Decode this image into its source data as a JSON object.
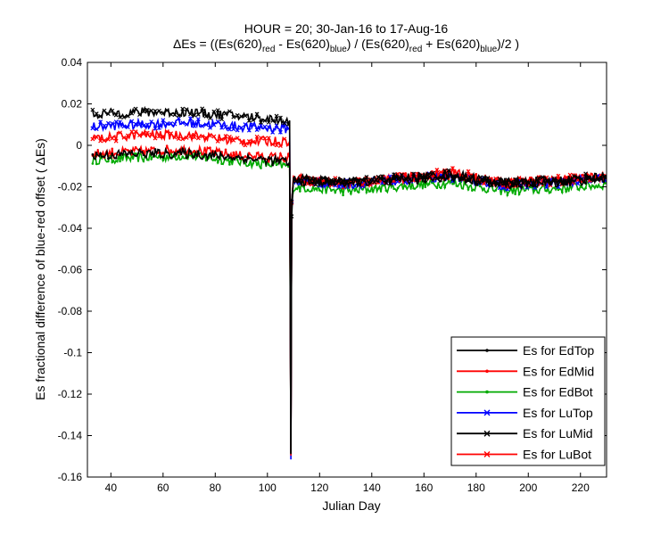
{
  "chart_data": {
    "type": "line",
    "title": "HOUR = 20; 30-Jan-16 to 17-Aug-16",
    "subtitle_parts": {
      "prefix": "ΔEs = ((Es(620)",
      "sub1": "red",
      "mid1": " - Es(620)",
      "sub2": "blue",
      "mid2": ") / (Es(620)",
      "sub3": "red",
      "mid3": " + Es(620)",
      "sub4": "blue",
      "suffix": ")/2  )"
    },
    "xlabel": "Julian Day",
    "ylabel": "Es fractional difference of blue-red offset ( ΔEs)",
    "xlim": [
      31,
      230
    ],
    "ylim": [
      -0.16,
      0.04
    ],
    "x_ticks": [
      40,
      60,
      80,
      100,
      120,
      140,
      160,
      180,
      200,
      220
    ],
    "y_ticks": [
      0.04,
      0.02,
      0,
      -0.02,
      -0.04,
      -0.06,
      -0.08,
      -0.1,
      -0.12,
      -0.14,
      -0.16
    ],
    "y_tick_labels": [
      "0.04",
      "0.02",
      "0",
      "-0.02",
      "-0.04",
      "-0.06",
      "-0.08",
      "-0.1",
      "-0.12",
      "-0.14",
      "-0.16"
    ],
    "grid": false,
    "legend_position": "bottom-right",
    "step_day": 109,
    "step_min": -0.15,
    "series": [
      {
        "name": "Es for EdTop",
        "color": "#000000",
        "marker": "dot",
        "pre": [
          [
            33,
            -0.005
          ],
          [
            50,
            -0.004
          ],
          [
            70,
            -0.004
          ],
          [
            90,
            -0.006
          ],
          [
            108,
            -0.008
          ]
        ],
        "post": [
          [
            110,
            -0.017
          ],
          [
            130,
            -0.018
          ],
          [
            150,
            -0.017
          ],
          [
            170,
            -0.015
          ],
          [
            190,
            -0.019
          ],
          [
            210,
            -0.018
          ],
          [
            229,
            -0.016
          ]
        ]
      },
      {
        "name": "Es for EdMid",
        "color": "#ff0000",
        "marker": "dot",
        "pre": [
          [
            33,
            -0.004
          ],
          [
            50,
            -0.003
          ],
          [
            70,
            -0.002
          ],
          [
            90,
            -0.005
          ],
          [
            108,
            -0.006
          ]
        ],
        "post": [
          [
            110,
            -0.016
          ],
          [
            130,
            -0.019
          ],
          [
            150,
            -0.016
          ],
          [
            170,
            -0.014
          ],
          [
            190,
            -0.018
          ],
          [
            210,
            -0.017
          ],
          [
            229,
            -0.015
          ]
        ]
      },
      {
        "name": "Es for EdBot",
        "color": "#00aa00",
        "marker": "dot",
        "pre": [
          [
            33,
            -0.007
          ],
          [
            50,
            -0.006
          ],
          [
            70,
            -0.005
          ],
          [
            90,
            -0.008
          ],
          [
            108,
            -0.01
          ]
        ],
        "post": [
          [
            110,
            -0.02
          ],
          [
            130,
            -0.022
          ],
          [
            150,
            -0.02
          ],
          [
            170,
            -0.018
          ],
          [
            190,
            -0.022
          ],
          [
            210,
            -0.021
          ],
          [
            229,
            -0.019
          ]
        ]
      },
      {
        "name": "Es for LuTop",
        "color": "#0000ff",
        "marker": "x",
        "pre": [
          [
            33,
            0.009
          ],
          [
            50,
            0.01
          ],
          [
            70,
            0.011
          ],
          [
            90,
            0.009
          ],
          [
            108,
            0.008
          ]
        ],
        "post": [
          [
            110,
            -0.017
          ],
          [
            130,
            -0.019
          ],
          [
            150,
            -0.017
          ],
          [
            170,
            -0.015
          ],
          [
            190,
            -0.019
          ],
          [
            210,
            -0.018
          ],
          [
            229,
            -0.016
          ]
        ]
      },
      {
        "name": "Es for LuMid",
        "color": "#000000",
        "marker": "x",
        "pre": [
          [
            33,
            0.015
          ],
          [
            50,
            0.016
          ],
          [
            70,
            0.016
          ],
          [
            90,
            0.014
          ],
          [
            108,
            0.012
          ]
        ],
        "post": [
          [
            110,
            -0.016
          ],
          [
            130,
            -0.018
          ],
          [
            150,
            -0.016
          ],
          [
            170,
            -0.014
          ],
          [
            190,
            -0.018
          ],
          [
            210,
            -0.017
          ],
          [
            229,
            -0.015
          ]
        ]
      },
      {
        "name": "Es for LuBot",
        "color": "#ff0000",
        "marker": "x",
        "pre": [
          [
            33,
            0.003
          ],
          [
            50,
            0.005
          ],
          [
            70,
            0.005
          ],
          [
            90,
            0.002
          ],
          [
            108,
            0.002
          ]
        ],
        "post": [
          [
            110,
            -0.016
          ],
          [
            130,
            -0.018
          ],
          [
            150,
            -0.016
          ],
          [
            170,
            -0.013
          ],
          [
            190,
            -0.018
          ],
          [
            210,
            -0.017
          ],
          [
            229,
            -0.015
          ]
        ]
      }
    ]
  }
}
